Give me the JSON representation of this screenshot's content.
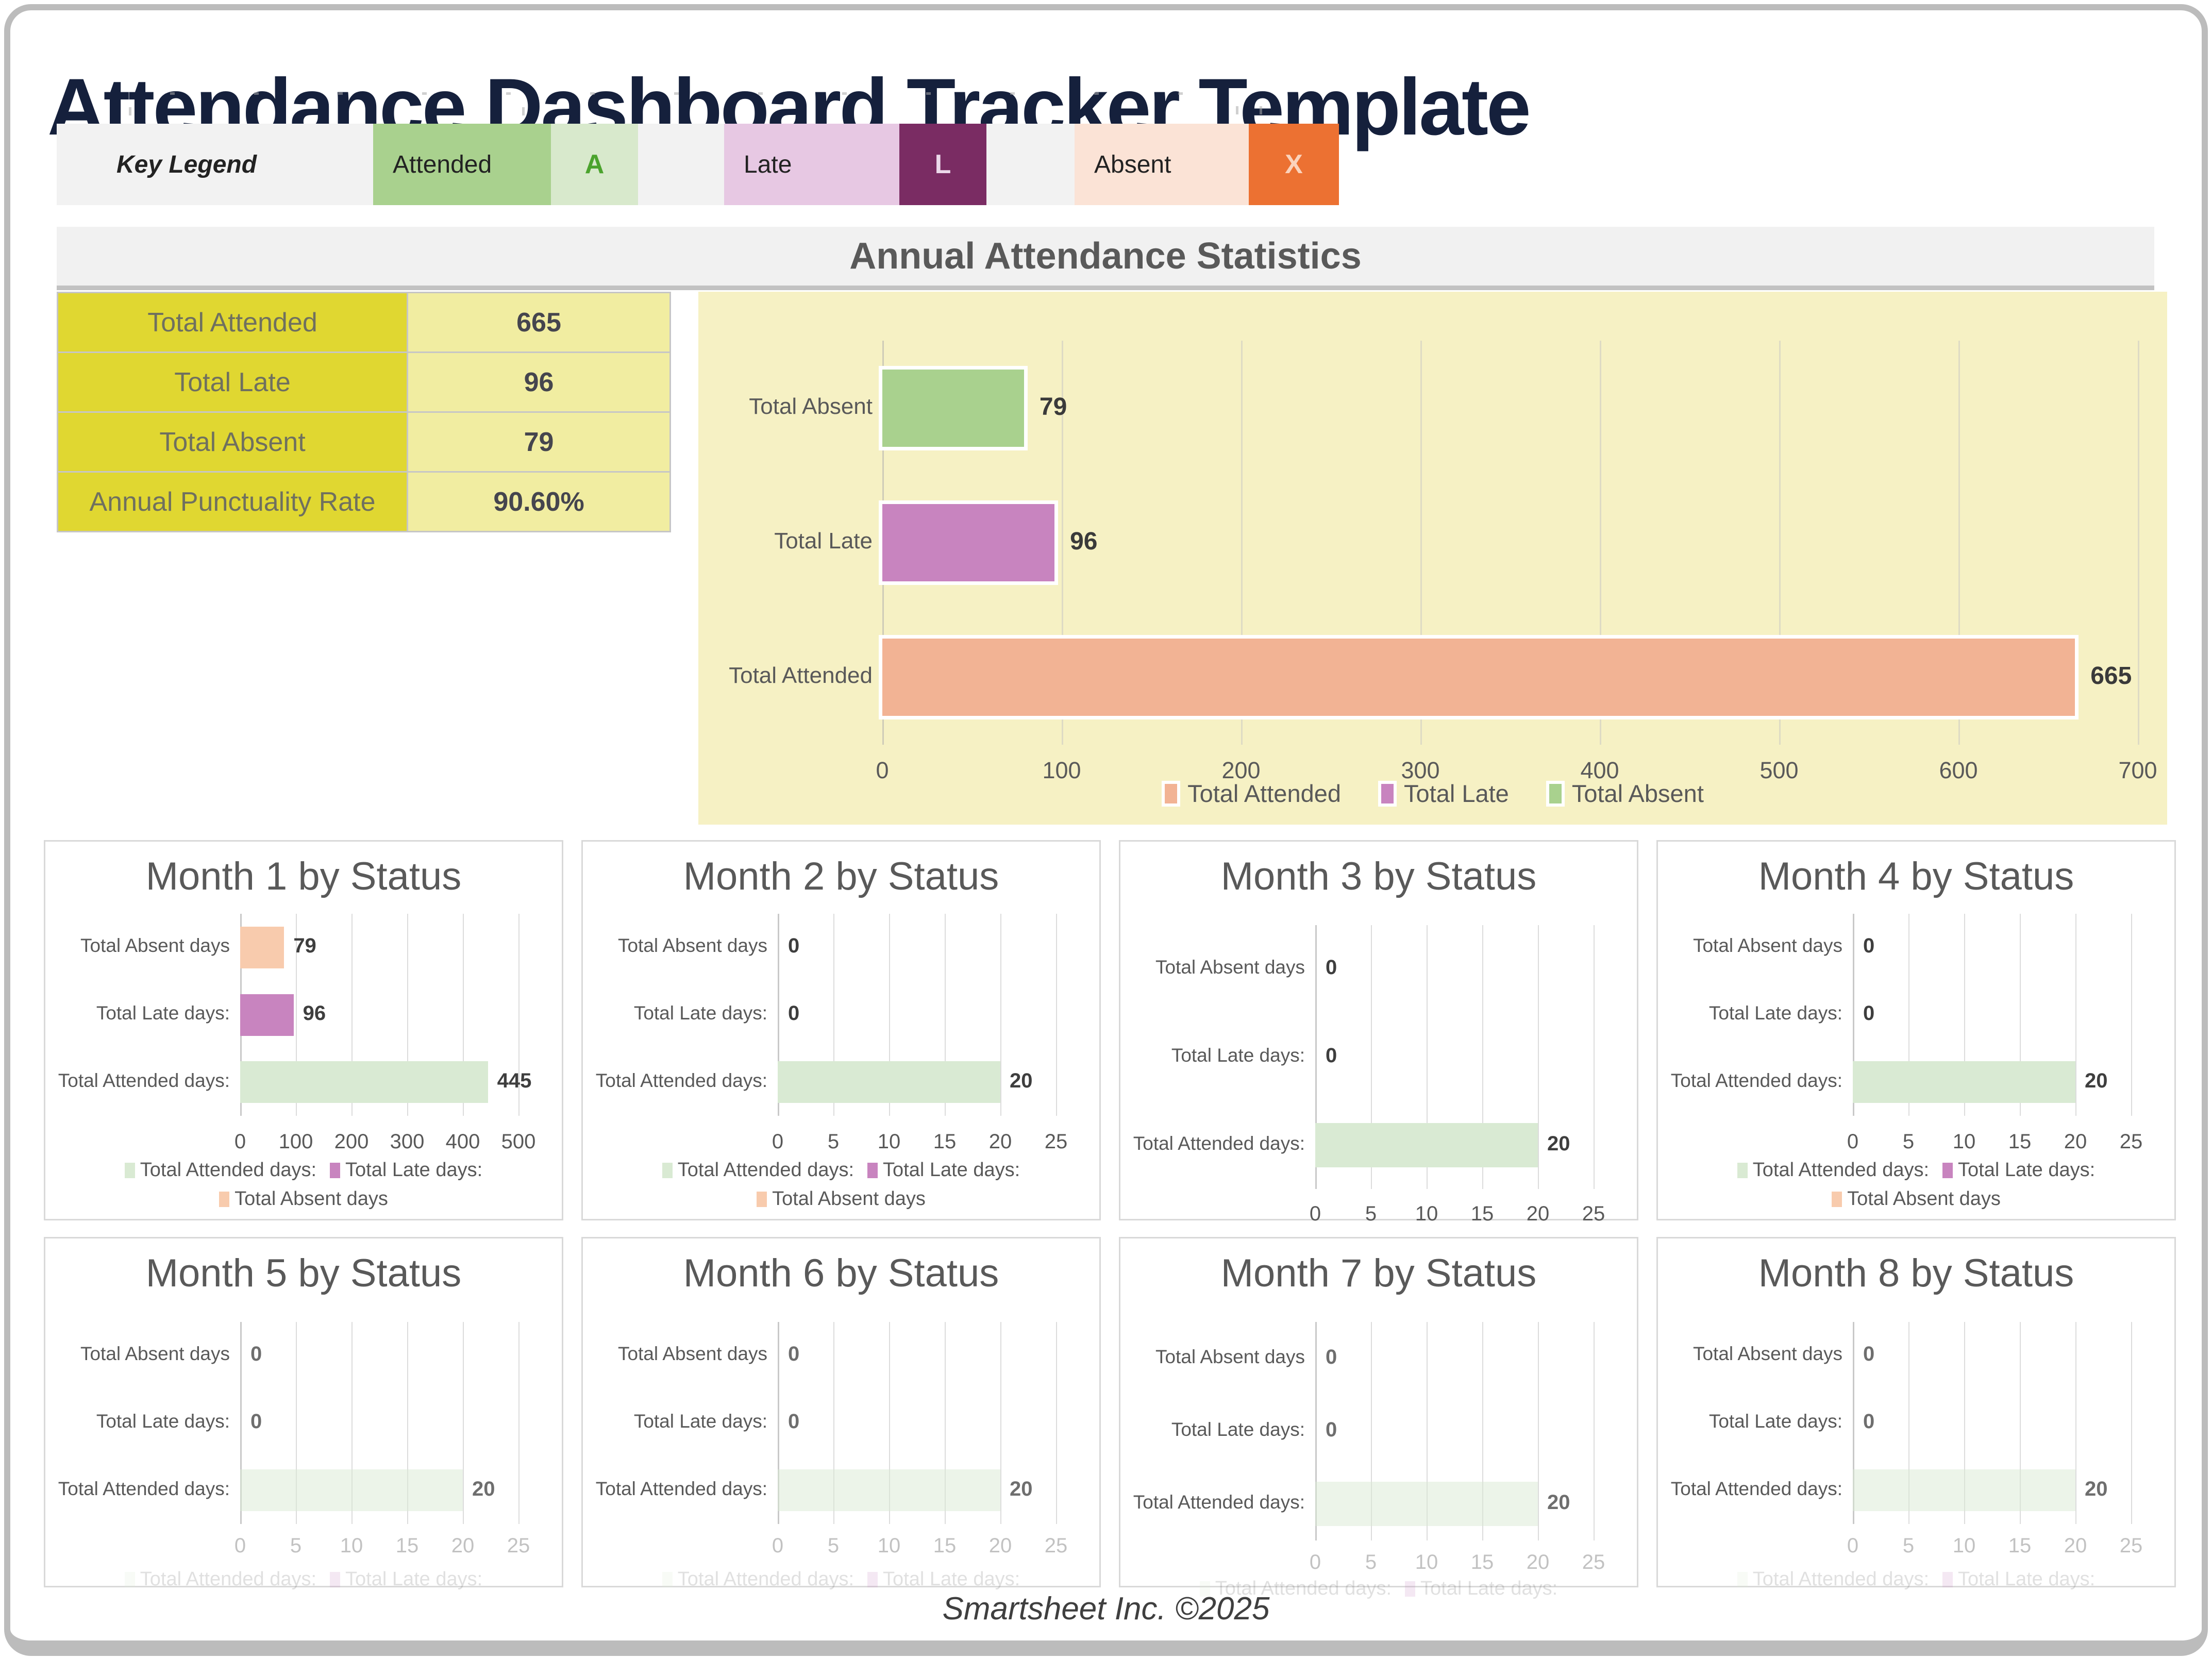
{
  "header": {
    "title": "Attendance Dashboard Tracker Template"
  },
  "key_legend": {
    "label": "Key Legend",
    "items": [
      {
        "name": "Attended",
        "badge": "A",
        "cell_color": "#a9d18e",
        "badge_bg": "#d8e9cc",
        "badge_color": "#4ba32d"
      },
      {
        "name": "Late",
        "badge": "L",
        "cell_color": "#e7c8e3",
        "badge_bg": "#7a2c63",
        "badge_color": "#ecd9ea"
      },
      {
        "name": "Absent",
        "badge": "X",
        "cell_color": "#fbe3d6",
        "badge_bg": "#ec7132",
        "badge_color": "#fbd3bc"
      }
    ]
  },
  "annual": {
    "section_title": "Annual Attendance Statistics",
    "stats": [
      {
        "label": "Total Attended",
        "value": "665"
      },
      {
        "label": "Total Late",
        "value": "96"
      },
      {
        "label": "Total Absent",
        "value": "79"
      },
      {
        "label": "Annual Punctuality Rate",
        "value": "90.60%"
      }
    ]
  },
  "footer": {
    "text": "Smartsheet Inc. ©2025"
  },
  "chart_data": [
    {
      "id": "annual-statistics",
      "type": "bar",
      "orientation": "horizontal",
      "title": "Annual Attendance Statistics",
      "categories": [
        "Total Absent",
        "Total Late",
        "Total Attended"
      ],
      "values": [
        79,
        96,
        665
      ],
      "colors": [
        "#a9d18e",
        "#c884bf",
        "#f2b394"
      ],
      "xticks": [
        0,
        100,
        200,
        300,
        400,
        500,
        600,
        700
      ],
      "xlim": [
        0,
        700
      ],
      "grid": true,
      "legend_position": "bottom",
      "legend": [
        "Total Attended",
        "Total Late",
        "Total Absent"
      ],
      "legend_colors": [
        "#f2b394",
        "#c884bf",
        "#a9d18e"
      ],
      "background": "#f6f1c4"
    },
    {
      "id": "month-1",
      "type": "bar",
      "orientation": "horizontal",
      "variant": "full",
      "faded": false,
      "title": "Month 1 by Status",
      "categories": [
        "Total Absent days",
        "Total Late days:",
        "Total Attended days:"
      ],
      "values": [
        79,
        96,
        445
      ],
      "colors": [
        "#f8cbad",
        "#c884bf",
        "#d9ead3"
      ],
      "xticks": [
        0,
        100,
        200,
        300,
        400,
        500
      ],
      "xlim": [
        0,
        500
      ],
      "grid": true,
      "legend_rows": [
        [
          "Total Attended days:",
          "Total Late days:"
        ],
        [
          "Total Absent days"
        ]
      ],
      "legend_row_colors": [
        [
          "#d9ead3",
          "#c884bf"
        ],
        [
          "#f8cbad"
        ]
      ]
    },
    {
      "id": "month-2",
      "type": "bar",
      "orientation": "horizontal",
      "variant": "full",
      "faded": false,
      "title": "Month 2 by Status",
      "categories": [
        "Total Absent days",
        "Total Late days:",
        "Total Attended days:"
      ],
      "values": [
        0,
        0,
        20
      ],
      "colors": [
        "#f8cbad",
        "#c884bf",
        "#d9ead3"
      ],
      "xticks": [
        0,
        5,
        10,
        15,
        20,
        25
      ],
      "xlim": [
        0,
        25
      ],
      "grid": true,
      "legend_rows": [
        [
          "Total Attended days:",
          "Total Late days:"
        ],
        [
          "Total Absent days"
        ]
      ],
      "legend_row_colors": [
        [
          "#d9ead3",
          "#c884bf"
        ],
        [
          "#f8cbad"
        ]
      ]
    },
    {
      "id": "month-3",
      "type": "bar",
      "orientation": "horizontal",
      "variant": "nolegend",
      "faded": false,
      "title": "Month 3 by Status",
      "categories": [
        "Total Absent days",
        "Total Late days:",
        "Total Attended days:"
      ],
      "values": [
        0,
        0,
        20
      ],
      "colors": [
        "#f8cbad",
        "#c884bf",
        "#d9ead3"
      ],
      "xticks": [
        0,
        5,
        10,
        15,
        20,
        25
      ],
      "xlim": [
        0,
        25
      ],
      "grid": true,
      "legend_rows": [],
      "legend_row_colors": []
    },
    {
      "id": "month-4",
      "type": "bar",
      "orientation": "horizontal",
      "variant": "full",
      "faded": false,
      "title": "Month 4 by Status",
      "categories": [
        "Total Absent days",
        "Total Late days:",
        "Total Attended days:"
      ],
      "values": [
        0,
        0,
        20
      ],
      "colors": [
        "#f8cbad",
        "#c884bf",
        "#d9ead3"
      ],
      "xticks": [
        0,
        5,
        10,
        15,
        20,
        25
      ],
      "xlim": [
        0,
        25
      ],
      "grid": true,
      "legend_rows": [
        [
          "Total Attended days:",
          "Total Late days:"
        ],
        [
          "Total Absent days"
        ]
      ],
      "legend_row_colors": [
        [
          "#d9ead3",
          "#c884bf"
        ],
        [
          "#f8cbad"
        ]
      ]
    },
    {
      "id": "month-5",
      "type": "bar",
      "orientation": "horizontal",
      "variant": "faded",
      "faded": true,
      "title": "Month 5 by Status",
      "categories": [
        "Total Absent days",
        "Total Late days:",
        "Total Attended days:"
      ],
      "values": [
        0,
        0,
        20
      ],
      "colors": [
        "#f8cbad",
        "#c884bf",
        "#d9ead3"
      ],
      "xticks": [
        0,
        5,
        10,
        15,
        20,
        25
      ],
      "xlim": [
        0,
        25
      ],
      "grid": true,
      "legend_rows": [
        [
          "Total Attended days:",
          "Total Late days:"
        ]
      ],
      "legend_row_colors": [
        [
          "#d9ead3",
          "#c884bf"
        ]
      ]
    },
    {
      "id": "month-6",
      "type": "bar",
      "orientation": "horizontal",
      "variant": "faded",
      "faded": true,
      "title": "Month 6 by Status",
      "categories": [
        "Total Absent days",
        "Total Late days:",
        "Total Attended days:"
      ],
      "values": [
        0,
        0,
        20
      ],
      "colors": [
        "#f8cbad",
        "#c884bf",
        "#d9ead3"
      ],
      "xticks": [
        0,
        5,
        10,
        15,
        20,
        25
      ],
      "xlim": [
        0,
        25
      ],
      "grid": true,
      "legend_rows": [
        [
          "Total Attended days:",
          "Total Late days:"
        ]
      ],
      "legend_row_colors": [
        [
          "#d9ead3",
          "#c884bf"
        ]
      ]
    },
    {
      "id": "month-7",
      "type": "bar",
      "orientation": "horizontal",
      "variant": "fadedtall",
      "faded": true,
      "title": "Month 7 by Status",
      "categories": [
        "Total Absent days",
        "Total Late days:",
        "Total Attended days:"
      ],
      "values": [
        0,
        0,
        20
      ],
      "colors": [
        "#f8cbad",
        "#c884bf",
        "#d9ead3"
      ],
      "xticks": [
        0,
        5,
        10,
        15,
        20,
        25
      ],
      "xlim": [
        0,
        25
      ],
      "grid": true,
      "legend_rows": [
        [
          "Total Attended days:",
          "Total Late days:"
        ]
      ],
      "legend_row_colors": [
        [
          "#d9ead3",
          "#c884bf"
        ]
      ]
    },
    {
      "id": "month-8",
      "type": "bar",
      "orientation": "horizontal",
      "variant": "faded",
      "faded": true,
      "title": "Month 8 by Status",
      "categories": [
        "Total Absent days",
        "Total Late days:",
        "Total Attended days:"
      ],
      "values": [
        0,
        0,
        20
      ],
      "colors": [
        "#f8cbad",
        "#c884bf",
        "#d9ead3"
      ],
      "xticks": [
        0,
        5,
        10,
        15,
        20,
        25
      ],
      "xlim": [
        0,
        25
      ],
      "grid": true,
      "legend_rows": [
        [
          "Total Attended days:",
          "Total Late days:"
        ]
      ],
      "legend_row_colors": [
        [
          "#d9ead3",
          "#c884bf"
        ]
      ]
    }
  ]
}
